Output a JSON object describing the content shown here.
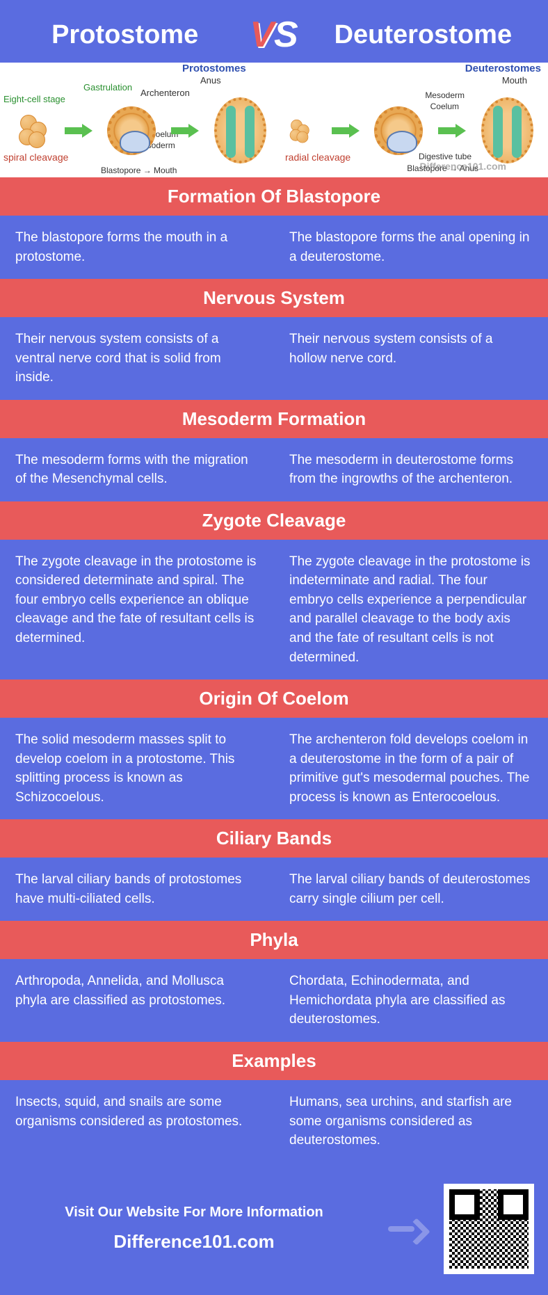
{
  "header": {
    "left_title": "Protostome",
    "right_title": "Deuterostome",
    "vs": "VS"
  },
  "diagram": {
    "protostome_title": "Protostomes",
    "deuterostome_title": "Deuterostomes",
    "labels": {
      "eight_cell": "Eight-cell stage",
      "gastrulation": "Gastrulation",
      "anus": "Anus",
      "archenteron": "Archenteron",
      "coelum": "Coelum",
      "mesoderm": "Mesoderm",
      "blastopore_mouth": "Blastopore → Mouth",
      "spiral_cleavage": "spiral cleavage",
      "radial_cleavage": "radial cleavage",
      "mouth": "Mouth",
      "digestive_tube": "Digestive tube",
      "blastopore_anus": "Blastopore → Anus"
    },
    "watermark": "Difference101.com"
  },
  "sections": [
    {
      "title": "Formation Of Blastopore",
      "left": "The blastopore forms the mouth in a protostome.",
      "right": "The blastopore forms the anal opening in a deuterostome."
    },
    {
      "title": "Nervous System",
      "left": "Their nervous system consists of a ventral nerve cord that is solid from inside.",
      "right": "Their nervous system consists of a hollow nerve cord."
    },
    {
      "title": "Mesoderm Formation",
      "left": "The mesoderm forms with the migration of the Mesenchymal cells.",
      "right": "The mesoderm in deuterostome forms from the ingrowths of the archenteron."
    },
    {
      "title": "Zygote Cleavage",
      "left": "The zygote cleavage in the protostome is considered determinate and spiral. The four embryo cells experience an oblique cleavage and the fate of resultant cells is determined.",
      "right": "The zygote cleavage in the protostome is indeterminate and radial. The four embryo cells experience a perpendicular and parallel cleavage to the body axis and the fate of resultant cells is not determined."
    },
    {
      "title": "Origin Of Coelom",
      "left": "The solid mesoderm masses split to develop coelom in a protostome. This splitting process is known as Schizocoelous.",
      "right": "The archenteron fold develops coelom in a deuterostome in the form of a pair of primitive gut's mesodermal pouches. The process is known as Enterocoelous."
    },
    {
      "title": "Ciliary Bands",
      "left": "The larval ciliary bands of protostomes have multi-ciliated cells.",
      "right": "The larval ciliary bands of deuterostomes carry single cilium per cell."
    },
    {
      "title": "Phyla",
      "left": "Arthropoda, Annelida, and Mollusca phyla are classified as protostomes.",
      "right": "Chordata, Echinodermata, and Hemichordata phyla are classified as deuterostomes."
    },
    {
      "title": "Examples",
      "left": "Insects, squid, and snails are some organisms considered as protostomes.",
      "right": "Humans, sea urchins, and starfish are some organisms considered as deuterostomes."
    }
  ],
  "footer": {
    "cta": "Visit Our Website For More Information",
    "site": "Difference101.com"
  },
  "colors": {
    "header_bg": "#5a6ce0",
    "section_header_bg": "#e85a5a",
    "body_bg": "#5a6ce0",
    "text": "#ffffff"
  }
}
